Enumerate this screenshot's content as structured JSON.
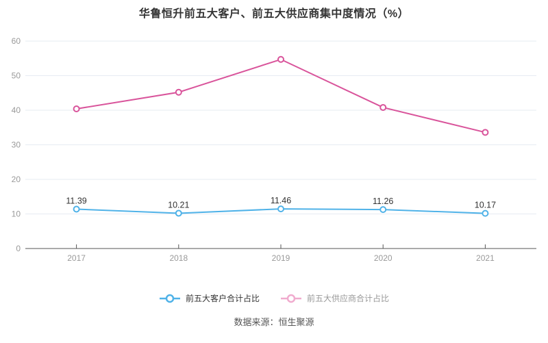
{
  "title": "华鲁恒升前五大客户、前五大供应商集中度情况（%）",
  "source": "数据来源：恒生聚源",
  "colors": {
    "customer_line": "#4fb2e8",
    "supplier_line": "#d9549b",
    "grid_line": "#e6ebf2",
    "axis_line": "#555555",
    "axis_label": "#999999",
    "data_label": "#333333",
    "background": "#ffffff"
  },
  "chart_data": {
    "type": "line",
    "categories": [
      "2017",
      "2018",
      "2019",
      "2020",
      "2021"
    ],
    "series": [
      {
        "name": "前五大客户合计占比",
        "color": "#4fb2e8",
        "values": [
          11.39,
          10.21,
          11.46,
          11.26,
          10.17
        ],
        "labels": [
          "11.39",
          "10.21",
          "11.46",
          "11.26",
          "10.17"
        ],
        "labels_visible": true
      },
      {
        "name": "前五大供应商合计占比",
        "color": "#d9549b",
        "values": [
          40.4,
          45.2,
          54.7,
          40.8,
          33.6
        ],
        "labels": [],
        "labels_visible": false
      }
    ],
    "title": "华鲁恒升前五大客户、前五大供应商集中度情况（%）",
    "xlabel": "",
    "ylabel": "",
    "ylim": [
      0,
      60
    ],
    "ytick_interval": 10,
    "yticks": [
      "0",
      "10",
      "20",
      "30",
      "40",
      "50",
      "60"
    ],
    "grid": true,
    "legend_position": "bottom"
  },
  "legend": {
    "items": [
      {
        "label": "前五大客户合计占比",
        "marker_color": "#4fb2e8",
        "text_color": "#333333"
      },
      {
        "label": "前五大供应商合计占比",
        "marker_color": "#f0abce",
        "text_color": "#999999"
      }
    ]
  }
}
